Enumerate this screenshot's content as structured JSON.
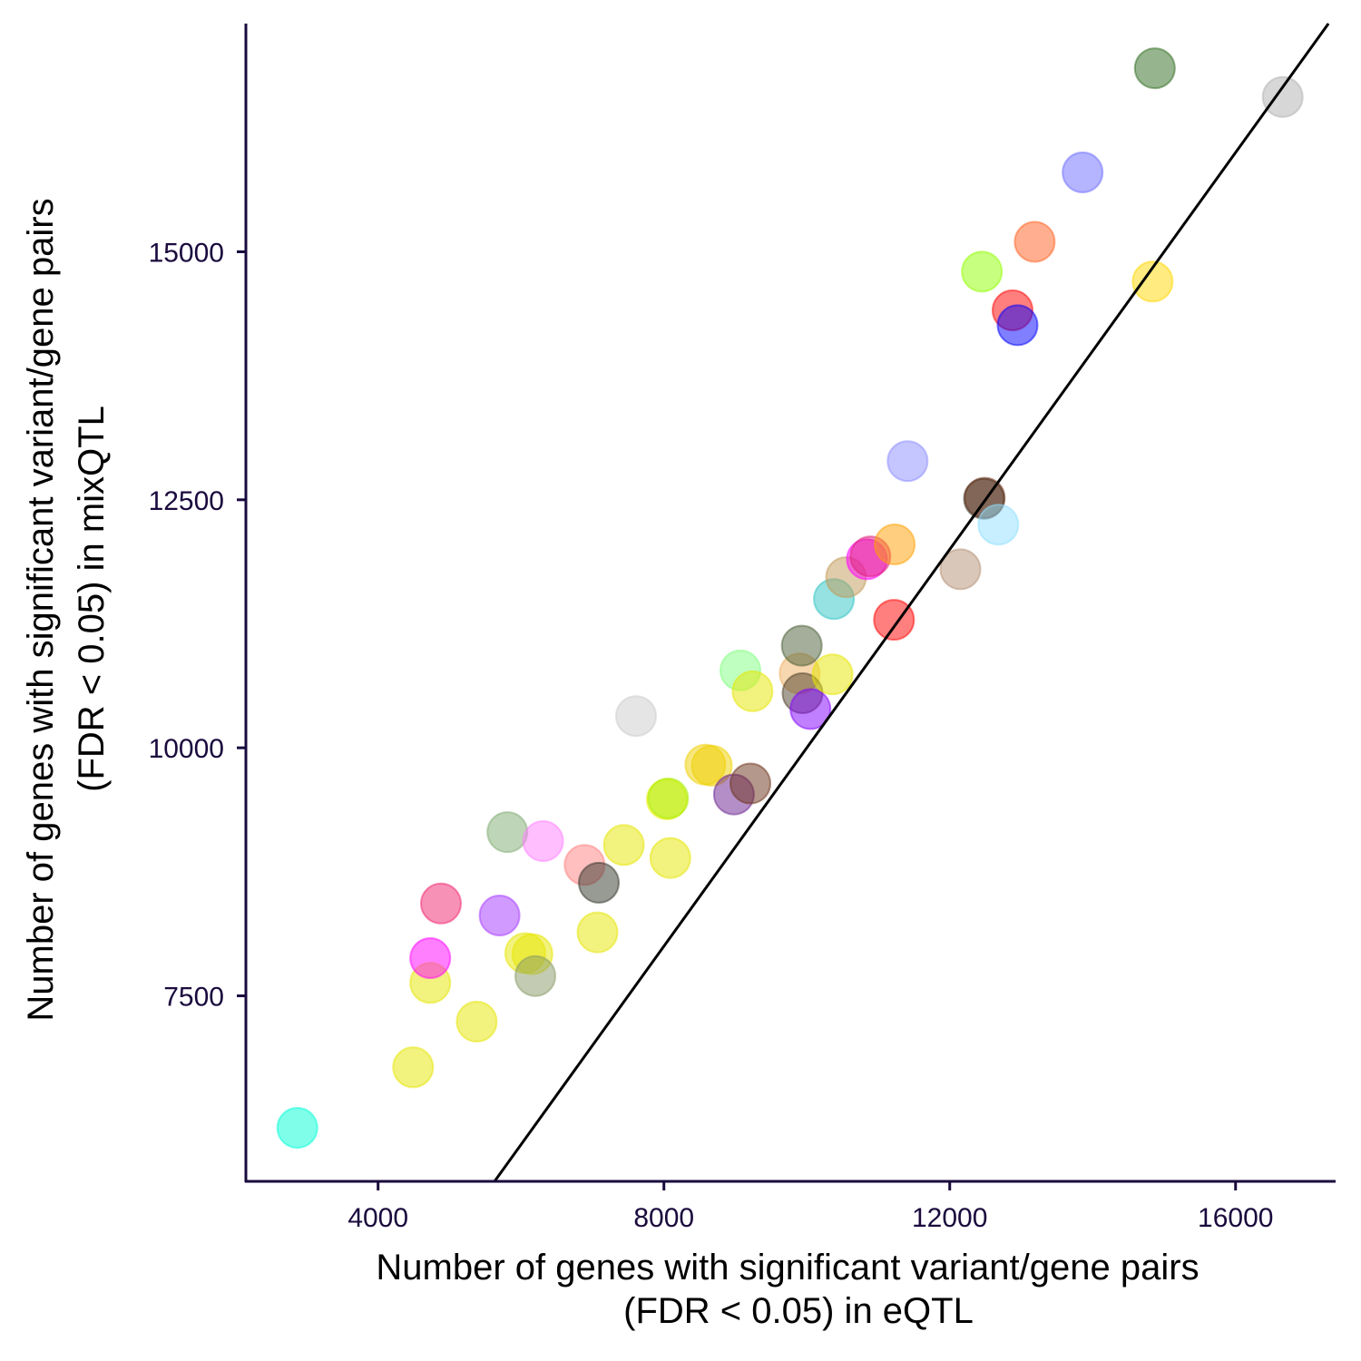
{
  "chart_data": {
    "type": "scatter",
    "xlabel_lines": [
      "Number of genes with significant variant/gene pairs",
      "(FDR < 0.05) in eQTL"
    ],
    "ylabel_lines": [
      "Number of genes with significant variant/gene pairs",
      "(FDR < 0.05) in mixQTL"
    ],
    "xlim": [
      2150,
      17400
    ],
    "ylim": [
      5630,
      17300
    ],
    "x_ticks": [
      {
        "value": 4000,
        "label": "4000"
      },
      {
        "value": 8000,
        "label": "8000"
      },
      {
        "value": 12000,
        "label": "12000"
      },
      {
        "value": 16000,
        "label": "16000"
      }
    ],
    "y_ticks": [
      {
        "value": 7500,
        "label": "7500"
      },
      {
        "value": 10000,
        "label": "10000"
      },
      {
        "value": 12500,
        "label": "12500"
      },
      {
        "value": 15000,
        "label": "15000"
      }
    ],
    "grid": false,
    "reference_line": {
      "type": "identity",
      "color": "#000000"
    },
    "points": [
      {
        "x": 2870,
        "y": 6170,
        "color": "#00ffd5"
      },
      {
        "x": 4490,
        "y": 6780,
        "color": "#e6e600"
      },
      {
        "x": 5380,
        "y": 7240,
        "color": "#e6e600"
      },
      {
        "x": 4730,
        "y": 7630,
        "color": "#e6e600"
      },
      {
        "x": 4730,
        "y": 7880,
        "color": "#ff00ff"
      },
      {
        "x": 4880,
        "y": 8430,
        "color": "#f0246e"
      },
      {
        "x": 5700,
        "y": 8310,
        "color": "#a335ff"
      },
      {
        "x": 5810,
        "y": 9150,
        "color": "#80ac72"
      },
      {
        "x": 6060,
        "y": 7930,
        "color": "#e6e600"
      },
      {
        "x": 6160,
        "y": 7920,
        "color": "#e6e600"
      },
      {
        "x": 6200,
        "y": 7700,
        "color": "#889a66"
      },
      {
        "x": 6310,
        "y": 9060,
        "color": "#ff80ff"
      },
      {
        "x": 6890,
        "y": 8820,
        "color": "#ff8080"
      },
      {
        "x": 7070,
        "y": 8140,
        "color": "#e6e600"
      },
      {
        "x": 7090,
        "y": 8640,
        "color": "#31352a"
      },
      {
        "x": 7440,
        "y": 9020,
        "color": "#e6e600"
      },
      {
        "x": 7610,
        "y": 10320,
        "color": "#cccccc"
      },
      {
        "x": 8040,
        "y": 9480,
        "color": "#f0f000"
      },
      {
        "x": 8060,
        "y": 9490,
        "color": "#a5ee00"
      },
      {
        "x": 8090,
        "y": 8890,
        "color": "#e6e600"
      },
      {
        "x": 8580,
        "y": 9830,
        "color": "#f0d000"
      },
      {
        "x": 8670,
        "y": 9820,
        "color": "#f0d000"
      },
      {
        "x": 8980,
        "y": 9530,
        "color": "#6a1f8f"
      },
      {
        "x": 9070,
        "y": 10780,
        "color": "#80ff80"
      },
      {
        "x": 9210,
        "y": 9640,
        "color": "#6b3219"
      },
      {
        "x": 9240,
        "y": 10570,
        "color": "#e6e600"
      },
      {
        "x": 9900,
        "y": 10750,
        "color": "#f0b060"
      },
      {
        "x": 9940,
        "y": 10550,
        "color": "#4d4029"
      },
      {
        "x": 9930,
        "y": 11030,
        "color": "#4a5e36"
      },
      {
        "x": 10050,
        "y": 10390,
        "color": "#8200ff"
      },
      {
        "x": 10360,
        "y": 10740,
        "color": "#e6e600"
      },
      {
        "x": 10380,
        "y": 11500,
        "color": "#2ec4c4"
      },
      {
        "x": 10550,
        "y": 11720,
        "color": "#c19a56"
      },
      {
        "x": 10840,
        "y": 11900,
        "color": "#ff00ff"
      },
      {
        "x": 10890,
        "y": 11930,
        "color": "#e0207a"
      },
      {
        "x": 11220,
        "y": 11290,
        "color": "#ff0000"
      },
      {
        "x": 11230,
        "y": 12050,
        "color": "#ffa000"
      },
      {
        "x": 11410,
        "y": 12890,
        "color": "#8c8cff"
      },
      {
        "x": 12150,
        "y": 11800,
        "color": "#b38f73"
      },
      {
        "x": 12450,
        "y": 14800,
        "color": "#90ff00"
      },
      {
        "x": 12480,
        "y": 12510,
        "color": "#31352a"
      },
      {
        "x": 12490,
        "y": 12520,
        "color": "#6b3219"
      },
      {
        "x": 12680,
        "y": 12250,
        "color": "#90e0ff"
      },
      {
        "x": 12880,
        "y": 14410,
        "color": "#ff0000"
      },
      {
        "x": 12950,
        "y": 14260,
        "color": "#0000ff"
      },
      {
        "x": 13190,
        "y": 15100,
        "color": "#ff6020"
      },
      {
        "x": 13860,
        "y": 15800,
        "color": "#6a6aff"
      },
      {
        "x": 14840,
        "y": 14700,
        "color": "#ffd700"
      },
      {
        "x": 14870,
        "y": 16850,
        "color": "#2e6b1e"
      },
      {
        "x": 16660,
        "y": 16560,
        "color": "#b0b0b0"
      }
    ]
  }
}
